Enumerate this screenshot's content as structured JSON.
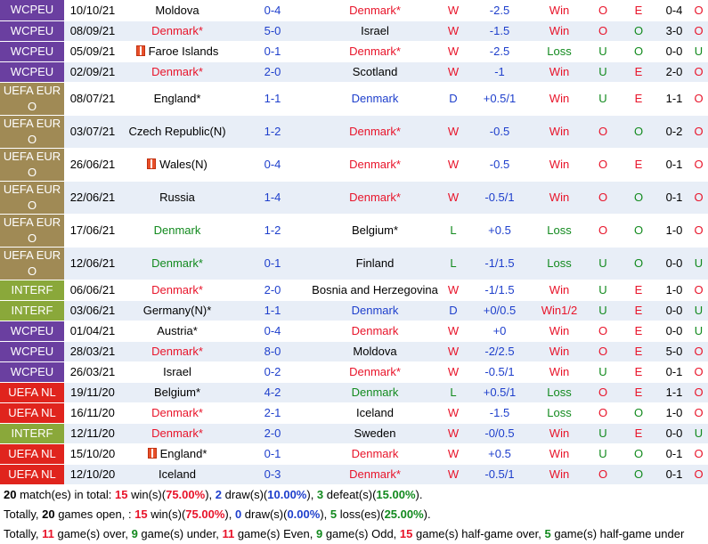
{
  "rows": [
    {
      "comp": "WCPEU",
      "ck": "wcpeu",
      "date": "10/10/21",
      "home": "Moldova",
      "hc": "blk",
      "hflag": false,
      "score": "0-4",
      "away": "Denmark*",
      "ac": "red",
      "aflag": false,
      "res": "W",
      "rc": "red",
      "hcap": "-2.5",
      "hr": "Win",
      "hrc": "red",
      "ou": "O",
      "ouc": "red",
      "oe": "E",
      "oec": "red",
      "ht": "0-4",
      "hou": "O",
      "houc": "red"
    },
    {
      "comp": "WCPEU",
      "ck": "wcpeu",
      "date": "08/09/21",
      "home": "Denmark*",
      "hc": "red",
      "hflag": false,
      "score": "5-0",
      "away": "Israel",
      "ac": "blk",
      "aflag": false,
      "res": "W",
      "rc": "red",
      "hcap": "-1.5",
      "hr": "Win",
      "hrc": "red",
      "ou": "O",
      "ouc": "red",
      "oe": "O",
      "oec": "green",
      "ht": "3-0",
      "hou": "O",
      "houc": "red"
    },
    {
      "comp": "WCPEU",
      "ck": "wcpeu",
      "date": "05/09/21",
      "home": "Faroe Islands",
      "hc": "blk",
      "hflag": true,
      "score": "0-1",
      "away": "Denmark*",
      "ac": "red",
      "aflag": false,
      "res": "W",
      "rc": "red",
      "hcap": "-2.5",
      "hr": "Loss",
      "hrc": "green",
      "ou": "U",
      "ouc": "green",
      "oe": "O",
      "oec": "green",
      "ht": "0-0",
      "hou": "U",
      "houc": "green"
    },
    {
      "comp": "WCPEU",
      "ck": "wcpeu",
      "date": "02/09/21",
      "home": "Denmark*",
      "hc": "red",
      "hflag": false,
      "score": "2-0",
      "away": "Scotland",
      "ac": "blk",
      "aflag": false,
      "res": "W",
      "rc": "red",
      "hcap": "-1",
      "hr": "Win",
      "hrc": "red",
      "ou": "U",
      "ouc": "green",
      "oe": "E",
      "oec": "red",
      "ht": "2-0",
      "hou": "O",
      "houc": "red"
    },
    {
      "comp": "UEFA EURO",
      "ck": "uefaeuro",
      "date": "08/07/21",
      "home": "England*",
      "hc": "blk",
      "hflag": false,
      "score": "1-1",
      "away": "Denmark",
      "ac": "blue",
      "aflag": false,
      "res": "D",
      "rc": "blue",
      "hcap": "+0.5/1",
      "hr": "Win",
      "hrc": "red",
      "ou": "U",
      "ouc": "green",
      "oe": "E",
      "oec": "red",
      "ht": "1-1",
      "hou": "O",
      "houc": "red"
    },
    {
      "comp": "UEFA EURO",
      "ck": "uefaeuro",
      "date": "03/07/21",
      "home": "Czech Republic(N)",
      "hc": "blk",
      "hflag": false,
      "score": "1-2",
      "away": "Denmark*",
      "ac": "red",
      "aflag": false,
      "res": "W",
      "rc": "red",
      "hcap": "-0.5",
      "hr": "Win",
      "hrc": "red",
      "ou": "O",
      "ouc": "red",
      "oe": "O",
      "oec": "green",
      "ht": "0-2",
      "hou": "O",
      "houc": "red"
    },
    {
      "comp": "UEFA EURO",
      "ck": "uefaeuro",
      "date": "26/06/21",
      "home": "Wales(N)",
      "hc": "blk",
      "hflag": true,
      "score": "0-4",
      "away": "Denmark*",
      "ac": "red",
      "aflag": false,
      "res": "W",
      "rc": "red",
      "hcap": "-0.5",
      "hr": "Win",
      "hrc": "red",
      "ou": "O",
      "ouc": "red",
      "oe": "E",
      "oec": "red",
      "ht": "0-1",
      "hou": "O",
      "houc": "red"
    },
    {
      "comp": "UEFA EURO",
      "ck": "uefaeuro",
      "date": "22/06/21",
      "home": "Russia",
      "hc": "blk",
      "hflag": false,
      "score": "1-4",
      "away": "Denmark*",
      "ac": "red",
      "aflag": false,
      "res": "W",
      "rc": "red",
      "hcap": "-0.5/1",
      "hr": "Win",
      "hrc": "red",
      "ou": "O",
      "ouc": "red",
      "oe": "O",
      "oec": "green",
      "ht": "0-1",
      "hou": "O",
      "houc": "red"
    },
    {
      "comp": "UEFA EURO",
      "ck": "uefaeuro",
      "date": "17/06/21",
      "home": "Denmark",
      "hc": "green",
      "hflag": false,
      "score": "1-2",
      "away": "Belgium*",
      "ac": "blk",
      "aflag": false,
      "res": "L",
      "rc": "green",
      "hcap": "+0.5",
      "hr": "Loss",
      "hrc": "green",
      "ou": "O",
      "ouc": "red",
      "oe": "O",
      "oec": "green",
      "ht": "1-0",
      "hou": "O",
      "houc": "red"
    },
    {
      "comp": "UEFA EURO",
      "ck": "uefaeuro",
      "date": "12/06/21",
      "home": "Denmark*",
      "hc": "green",
      "hflag": false,
      "score": "0-1",
      "away": "Finland",
      "ac": "blk",
      "aflag": false,
      "res": "L",
      "rc": "green",
      "hcap": "-1/1.5",
      "hr": "Loss",
      "hrc": "green",
      "ou": "U",
      "ouc": "green",
      "oe": "O",
      "oec": "green",
      "ht": "0-0",
      "hou": "U",
      "houc": "green"
    },
    {
      "comp": "INTERF",
      "ck": "interf",
      "date": "06/06/21",
      "home": "Denmark*",
      "hc": "red",
      "hflag": false,
      "score": "2-0",
      "away": "Bosnia and Herzegovina",
      "ac": "blk",
      "aflag": false,
      "res": "W",
      "rc": "red",
      "hcap": "-1/1.5",
      "hr": "Win",
      "hrc": "red",
      "ou": "U",
      "ouc": "green",
      "oe": "E",
      "oec": "red",
      "ht": "1-0",
      "hou": "O",
      "houc": "red"
    },
    {
      "comp": "INTERF",
      "ck": "interf",
      "date": "03/06/21",
      "home": "Germany(N)*",
      "hc": "blk",
      "hflag": false,
      "score": "1-1",
      "away": "Denmark",
      "ac": "blue",
      "aflag": false,
      "res": "D",
      "rc": "blue",
      "hcap": "+0/0.5",
      "hr": "Win1/2",
      "hrc": "red",
      "ou": "U",
      "ouc": "green",
      "oe": "E",
      "oec": "red",
      "ht": "0-0",
      "hou": "U",
      "houc": "green"
    },
    {
      "comp": "WCPEU",
      "ck": "wcpeu",
      "date": "01/04/21",
      "home": "Austria*",
      "hc": "blk",
      "hflag": false,
      "score": "0-4",
      "away": "Denmark",
      "ac": "red",
      "aflag": false,
      "res": "W",
      "rc": "red",
      "hcap": "+0",
      "hr": "Win",
      "hrc": "red",
      "ou": "O",
      "ouc": "red",
      "oe": "E",
      "oec": "red",
      "ht": "0-0",
      "hou": "U",
      "houc": "green"
    },
    {
      "comp": "WCPEU",
      "ck": "wcpeu",
      "date": "28/03/21",
      "home": "Denmark*",
      "hc": "red",
      "hflag": false,
      "score": "8-0",
      "away": "Moldova",
      "ac": "blk",
      "aflag": false,
      "res": "W",
      "rc": "red",
      "hcap": "-2/2.5",
      "hr": "Win",
      "hrc": "red",
      "ou": "O",
      "ouc": "red",
      "oe": "E",
      "oec": "red",
      "ht": "5-0",
      "hou": "O",
      "houc": "red"
    },
    {
      "comp": "WCPEU",
      "ck": "wcpeu",
      "date": "26/03/21",
      "home": "Israel",
      "hc": "blk",
      "hflag": false,
      "score": "0-2",
      "away": "Denmark*",
      "ac": "red",
      "aflag": false,
      "res": "W",
      "rc": "red",
      "hcap": "-0.5/1",
      "hr": "Win",
      "hrc": "red",
      "ou": "U",
      "ouc": "green",
      "oe": "E",
      "oec": "red",
      "ht": "0-1",
      "hou": "O",
      "houc": "red"
    },
    {
      "comp": "UEFA NL",
      "ck": "uefanl",
      "date": "19/11/20",
      "home": "Belgium*",
      "hc": "blk",
      "hflag": false,
      "score": "4-2",
      "away": "Denmark",
      "ac": "green",
      "aflag": false,
      "res": "L",
      "rc": "green",
      "hcap": "+0.5/1",
      "hr": "Loss",
      "hrc": "green",
      "ou": "O",
      "ouc": "red",
      "oe": "E",
      "oec": "red",
      "ht": "1-1",
      "hou": "O",
      "houc": "red"
    },
    {
      "comp": "UEFA NL",
      "ck": "uefanl",
      "date": "16/11/20",
      "home": "Denmark*",
      "hc": "red",
      "hflag": false,
      "score": "2-1",
      "away": "Iceland",
      "ac": "blk",
      "aflag": false,
      "res": "W",
      "rc": "red",
      "hcap": "-1.5",
      "hr": "Loss",
      "hrc": "green",
      "ou": "O",
      "ouc": "red",
      "oe": "O",
      "oec": "green",
      "ht": "1-0",
      "hou": "O",
      "houc": "red"
    },
    {
      "comp": "INTERF",
      "ck": "interf",
      "date": "12/11/20",
      "home": "Denmark*",
      "hc": "red",
      "hflag": false,
      "score": "2-0",
      "away": "Sweden",
      "ac": "blk",
      "aflag": false,
      "res": "W",
      "rc": "red",
      "hcap": "-0/0.5",
      "hr": "Win",
      "hrc": "red",
      "ou": "U",
      "ouc": "green",
      "oe": "E",
      "oec": "red",
      "ht": "0-0",
      "hou": "U",
      "houc": "green"
    },
    {
      "comp": "UEFA NL",
      "ck": "uefanl",
      "date": "15/10/20",
      "home": "England*",
      "hc": "blk",
      "hflag": true,
      "score": "0-1",
      "away": "Denmark",
      "ac": "red",
      "aflag": false,
      "res": "W",
      "rc": "red",
      "hcap": "+0.5",
      "hr": "Win",
      "hrc": "red",
      "ou": "U",
      "ouc": "green",
      "oe": "O",
      "oec": "green",
      "ht": "0-1",
      "hou": "O",
      "houc": "red"
    },
    {
      "comp": "UEFA NL",
      "ck": "uefanl",
      "date": "12/10/20",
      "home": "Iceland",
      "hc": "blk",
      "hflag": false,
      "score": "0-3",
      "away": "Denmark*",
      "ac": "red",
      "aflag": false,
      "res": "W",
      "rc": "red",
      "hcap": "-0.5/1",
      "hr": "Win",
      "hrc": "red",
      "ou": "O",
      "ouc": "red",
      "oe": "O",
      "oec": "green",
      "ht": "0-1",
      "hou": "O",
      "houc": "red"
    }
  ],
  "summary": {
    "line1": {
      "total": "20",
      "t1": " match(es) in total: ",
      "wins": "15",
      "t2": " win(s)(",
      "win_pct": "75.00%",
      "t3": "), ",
      "draws": "2",
      "t4": " draw(s)(",
      "draw_pct": "10.00%",
      "t5": "), ",
      "defeats": "3",
      "t6": " defeat(s)(",
      "defeat_pct": "15.00%",
      "t7": ")."
    },
    "line2": {
      "t0": "Totally, ",
      "open": "20",
      "t1": " games open, : ",
      "wins": "15",
      "t2": " win(s)(",
      "win_pct": "75.00%",
      "t3": "), ",
      "draws": "0",
      "t4": " draw(s)(",
      "draw_pct": "0.00%",
      "t5": "), ",
      "loss": "5",
      "t6": " loss(es)(",
      "loss_pct": "25.00%",
      "t7": ")."
    },
    "line3": {
      "t0": "Totally, ",
      "over": "11",
      "t1": " game(s) over, ",
      "under": "9",
      "t2": " game(s) under, ",
      "even": "11",
      "t3": " game(s) Even, ",
      "odd": "9",
      "t4": " game(s) Odd, ",
      "hover": "15",
      "t5": " game(s) half-game over, ",
      "hunder": "5",
      "t6": " game(s) half-game under"
    }
  }
}
